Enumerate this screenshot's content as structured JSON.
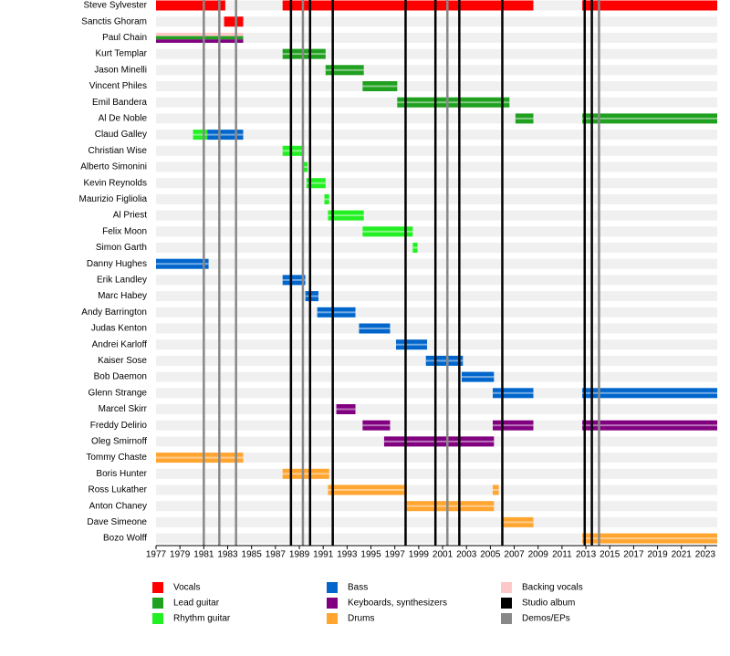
{
  "chart_data": {
    "type": "timeline",
    "xlim": [
      1977,
      2024
    ],
    "xticks": [
      1977,
      1979,
      1981,
      1983,
      1985,
      1987,
      1989,
      1991,
      1993,
      1995,
      1997,
      1999,
      2001,
      2003,
      2005,
      2007,
      2009,
      2011,
      2013,
      2015,
      2017,
      2019,
      2021,
      2023
    ],
    "legend": [
      {
        "name": "Vocals",
        "color": "#ff0000"
      },
      {
        "name": "Lead guitar",
        "color": "#1fa01f"
      },
      {
        "name": "Rhythm guitar",
        "color": "#22f022"
      },
      {
        "name": "Bass",
        "color": "#0066cc"
      },
      {
        "name": "Keyboards, synthesizers",
        "color": "#800080"
      },
      {
        "name": "Drums",
        "color": "#ffa530"
      },
      {
        "name": "Backing vocals",
        "color": "#ffc8c8"
      },
      {
        "name": "Studio album",
        "color": "#000000"
      },
      {
        "name": "Demos/EPs",
        "color": "#888888"
      }
    ],
    "members": [
      {
        "name": "Steve Sylvester",
        "segments": [
          {
            "roles": [
              0
            ],
            "start": 1977,
            "end": 1982.8
          },
          {
            "roles": [
              0
            ],
            "start": 1987.6,
            "end": 2008.6
          },
          {
            "roles": [
              0
            ],
            "start": 2012.7,
            "end": 2024
          }
        ]
      },
      {
        "name": "Sanctis Ghoram",
        "segments": [
          {
            "roles": [
              0
            ],
            "start": 1982.7,
            "end": 1984.3
          }
        ]
      },
      {
        "name": "Paul Chain",
        "segments": [
          {
            "roles": [
              6,
              1,
              4
            ],
            "start": 1977,
            "end": 1984.3
          }
        ]
      },
      {
        "name": "Kurt Templar",
        "segments": [
          {
            "roles": [
              1
            ],
            "start": 1987.6,
            "end": 1991.2
          }
        ]
      },
      {
        "name": "Jason Minelli",
        "segments": [
          {
            "roles": [
              1
            ],
            "start": 1991.2,
            "end": 1994.4
          }
        ]
      },
      {
        "name": "Vincent Philes",
        "segments": [
          {
            "roles": [
              1
            ],
            "start": 1994.3,
            "end": 1997.2
          }
        ]
      },
      {
        "name": "Emil Bandera",
        "segments": [
          {
            "roles": [
              1
            ],
            "start": 1997.2,
            "end": 2006.6
          }
        ]
      },
      {
        "name": "Al De Noble",
        "segments": [
          {
            "roles": [
              1
            ],
            "start": 2007.1,
            "end": 2008.6
          },
          {
            "roles": [
              1
            ],
            "start": 2012.7,
            "end": 2024
          }
        ]
      },
      {
        "name": "Claud Galley",
        "segments": [
          {
            "roles": [
              2
            ],
            "start": 1980.1,
            "end": 1981.3
          },
          {
            "roles": [
              3
            ],
            "start": 1981.3,
            "end": 1984.3
          }
        ]
      },
      {
        "name": "Christian Wise",
        "segments": [
          {
            "roles": [
              2
            ],
            "start": 1987.6,
            "end": 1989.4
          }
        ]
      },
      {
        "name": "Alberto Simonini",
        "segments": [
          {
            "roles": [
              2
            ],
            "start": 1989.3,
            "end": 1989.7
          }
        ]
      },
      {
        "name": "Kevin Reynolds",
        "segments": [
          {
            "roles": [
              2
            ],
            "start": 1989.6,
            "end": 1991.2
          }
        ]
      },
      {
        "name": "Maurizio Figliolia",
        "segments": [
          {
            "roles": [
              2
            ],
            "start": 1991.1,
            "end": 1991.5
          }
        ]
      },
      {
        "name": "Al Priest",
        "segments": [
          {
            "roles": [
              2
            ],
            "start": 1991.4,
            "end": 1994.4
          }
        ]
      },
      {
        "name": "Felix Moon",
        "segments": [
          {
            "roles": [
              2
            ],
            "start": 1994.3,
            "end": 1998.5
          }
        ]
      },
      {
        "name": "Simon Garth",
        "segments": [
          {
            "roles": [
              2
            ],
            "start": 1998.5,
            "end": 1998.9
          }
        ]
      },
      {
        "name": "Danny Hughes",
        "segments": [
          {
            "roles": [
              3
            ],
            "start": 1977,
            "end": 1981.4
          }
        ]
      },
      {
        "name": "Erik Landley",
        "segments": [
          {
            "roles": [
              3
            ],
            "start": 1987.6,
            "end": 1989.5
          }
        ]
      },
      {
        "name": "Marc Habey",
        "segments": [
          {
            "roles": [
              3
            ],
            "start": 1989.5,
            "end": 1990.6
          }
        ]
      },
      {
        "name": "Andy Barrington",
        "segments": [
          {
            "roles": [
              3
            ],
            "start": 1990.5,
            "end": 1993.7
          }
        ]
      },
      {
        "name": "Judas Kenton",
        "segments": [
          {
            "roles": [
              3
            ],
            "start": 1994,
            "end": 1996.6
          }
        ]
      },
      {
        "name": "Andrei Karloff",
        "segments": [
          {
            "roles": [
              3
            ],
            "start": 1997.1,
            "end": 1999.7
          }
        ]
      },
      {
        "name": "Kaiser Sose",
        "segments": [
          {
            "roles": [
              3
            ],
            "start": 1999.6,
            "end": 2002.7
          }
        ]
      },
      {
        "name": "Bob Daemon",
        "segments": [
          {
            "roles": [
              3
            ],
            "start": 2002.6,
            "end": 2005.3
          }
        ]
      },
      {
        "name": "Glenn Strange",
        "segments": [
          {
            "roles": [
              3
            ],
            "start": 2005.2,
            "end": 2008.6
          },
          {
            "roles": [
              3
            ],
            "start": 2012.7,
            "end": 2024
          }
        ]
      },
      {
        "name": "Marcel Skirr",
        "segments": [
          {
            "roles": [
              4
            ],
            "start": 1992.1,
            "end": 1993.7
          }
        ]
      },
      {
        "name": "Freddy Delirio",
        "segments": [
          {
            "roles": [
              4
            ],
            "start": 1994.3,
            "end": 1996.6
          },
          {
            "roles": [
              4
            ],
            "start": 2005.2,
            "end": 2008.6
          },
          {
            "roles": [
              4
            ],
            "start": 2012.7,
            "end": 2024
          }
        ]
      },
      {
        "name": "Oleg Smirnoff",
        "segments": [
          {
            "roles": [
              4
            ],
            "start": 1996.1,
            "end": 2005.3
          }
        ]
      },
      {
        "name": "Tommy Chaste",
        "segments": [
          {
            "roles": [
              5
            ],
            "start": 1977,
            "end": 1984.3
          }
        ]
      },
      {
        "name": "Boris Hunter",
        "segments": [
          {
            "roles": [
              5
            ],
            "start": 1987.6,
            "end": 1991.5
          }
        ]
      },
      {
        "name": "Ross Lukather",
        "segments": [
          {
            "roles": [
              5
            ],
            "start": 1991.4,
            "end": 1998
          },
          {
            "roles": [
              5
            ],
            "start": 2005.2,
            "end": 2005.7
          }
        ]
      },
      {
        "name": "Anton Chaney",
        "segments": [
          {
            "roles": [
              5
            ],
            "start": 1997.9,
            "end": 2005.3
          }
        ]
      },
      {
        "name": "Dave Simeone",
        "segments": [
          {
            "roles": [
              5
            ],
            "start": 2006,
            "end": 2008.6
          }
        ]
      },
      {
        "name": "Bozo Wolff",
        "segments": [
          {
            "roles": [
              5
            ],
            "start": 2012.7,
            "end": 2024
          }
        ]
      }
    ],
    "events": [
      {
        "x": 1981,
        "kind": 8
      },
      {
        "x": 1982.3,
        "kind": 8
      },
      {
        "x": 1983.7,
        "kind": 8
      },
      {
        "x": 1988.3,
        "kind": 7
      },
      {
        "x": 1989.3,
        "kind": 8
      },
      {
        "x": 1989.9,
        "kind": 7
      },
      {
        "x": 1991.8,
        "kind": 7
      },
      {
        "x": 1997.9,
        "kind": 7
      },
      {
        "x": 2000.4,
        "kind": 7
      },
      {
        "x": 2001.4,
        "kind": 8
      },
      {
        "x": 2002.4,
        "kind": 7
      },
      {
        "x": 2006,
        "kind": 7
      },
      {
        "x": 2012.9,
        "kind": 7
      },
      {
        "x": 2013.5,
        "kind": 7
      },
      {
        "x": 2014.1,
        "kind": 8
      }
    ]
  }
}
